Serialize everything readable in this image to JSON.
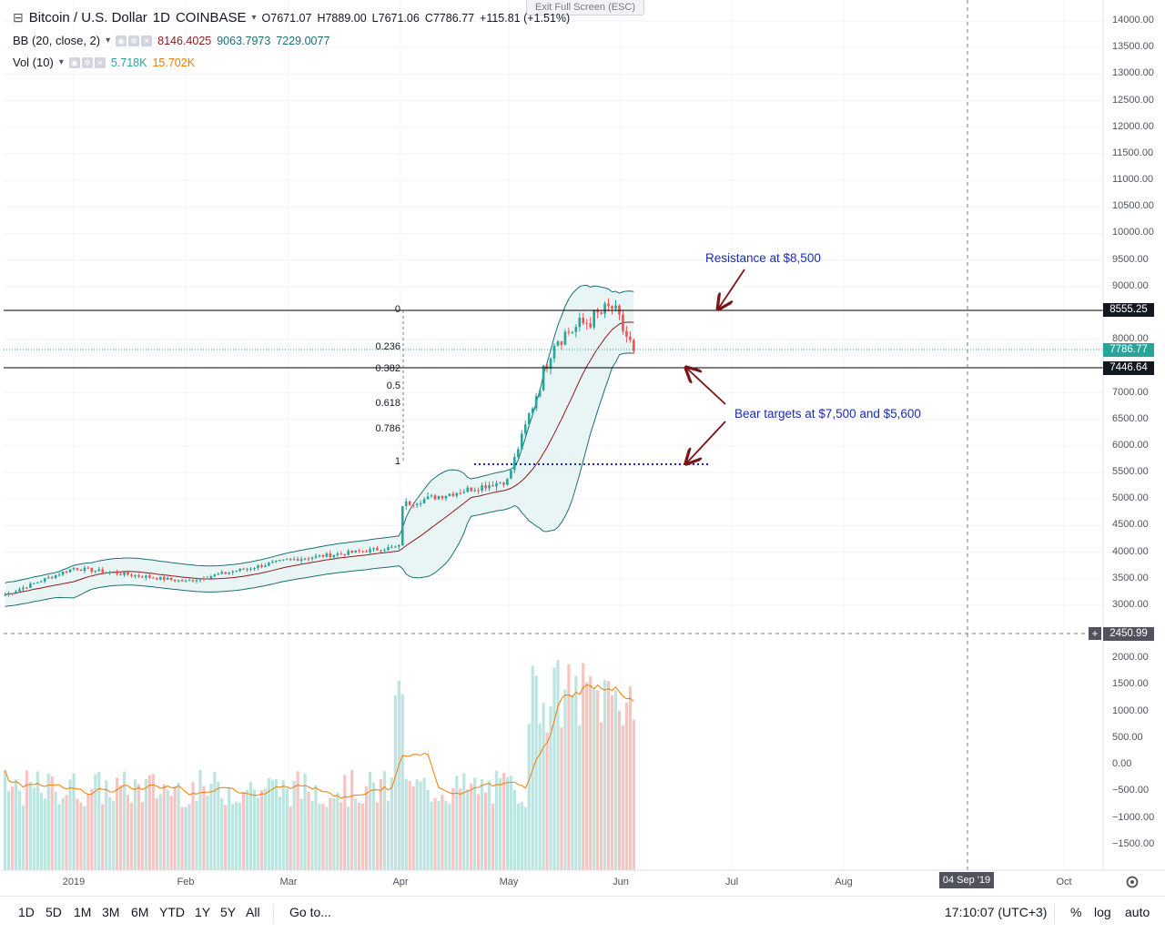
{
  "header": {
    "symbol": "Bitcoin / U.S. Dollar",
    "interval": "1D",
    "exchange": "COINBASE",
    "o_label": "O",
    "o": "7671.07",
    "h_label": "H",
    "h": "7889.00",
    "l_label": "L",
    "l": "7671.06",
    "c_label": "C",
    "c": "7786.77",
    "change": "+115.81 (+1.51%)"
  },
  "bb_legend": {
    "label": "BB (20, close, 2)",
    "v1": "8146.4025",
    "v2": "9063.7973",
    "v3": "7229.0077"
  },
  "vol_legend": {
    "label": "Vol (10)",
    "v1": "5.718K",
    "v2": "15.702K"
  },
  "exit_fullscreen": "Exit Full Screen (ESC)",
  "price_axis": {
    "labels": [
      "14000.00",
      "13500.00",
      "13000.00",
      "12500.00",
      "12000.00",
      "11500.00",
      "11000.00",
      "10500.00",
      "10000.00",
      "9500.00",
      "9000.00",
      "8000.00",
      "7000.00",
      "6500.00",
      "6000.00",
      "5500.00",
      "5000.00",
      "4500.00",
      "4000.00",
      "3500.00",
      "3000.00"
    ],
    "tag_resistance": "8555.25",
    "tag_current": "7786.77",
    "tag_support": "7446.64",
    "tag_cursor": "2450.99"
  },
  "volume_axis": {
    "labels": [
      "2000.00",
      "1500.00",
      "1000.00",
      "500.00",
      "0.00",
      "−500.00",
      "−1000.00",
      "−1500.00"
    ]
  },
  "time_axis": {
    "labels": [
      "2019",
      "Feb",
      "Mar",
      "Apr",
      "May",
      "Jun",
      "Jul",
      "Aug",
      "Oct"
    ],
    "cursor_date": "04 Sep '19"
  },
  "fib_levels": [
    "0",
    "0.236",
    "0.382",
    "0.5",
    "0.618",
    "0.786",
    "1"
  ],
  "annotations": {
    "resistance": "Resistance at $8,500",
    "bear": "Bear targets at $7,500 and $5,600"
  },
  "toolbar": {
    "ranges": [
      "1D",
      "5D",
      "1M",
      "3M",
      "6M",
      "YTD",
      "1Y",
      "5Y",
      "All"
    ],
    "goto": "Go to...",
    "time": "17:10:07 (UTC+3)",
    "percent": "%",
    "log": "log",
    "auto": "auto"
  },
  "colors": {
    "up": "#26a69a",
    "down": "#ef5350",
    "band_fill": "#e9f5f4",
    "band_line": "#1b6f74",
    "basis": "#8e1b1b",
    "annotation": "#1a2bb8",
    "arrow": "#7b1416"
  },
  "chart_data": {
    "type": "candlestick",
    "series_anchor_points": [
      {
        "date": "2019-01-01",
        "close": 3700
      },
      {
        "date": "2019-02-01",
        "close": 3450
      },
      {
        "date": "2019-03-01",
        "close": 3850
      },
      {
        "date": "2019-04-01",
        "close": 4100
      },
      {
        "date": "2019-04-02",
        "close": 4900
      },
      {
        "date": "2019-05-01",
        "close": 5350
      },
      {
        "date": "2019-05-14",
        "close": 8000
      },
      {
        "date": "2019-05-30",
        "close": 8600
      },
      {
        "date": "2019-06-05",
        "close": 7786.77
      }
    ],
    "horizontal_lines": [
      8555.25,
      7446.64
    ],
    "dotted_level": 5600,
    "ylim": [
      2450,
      14200
    ]
  }
}
